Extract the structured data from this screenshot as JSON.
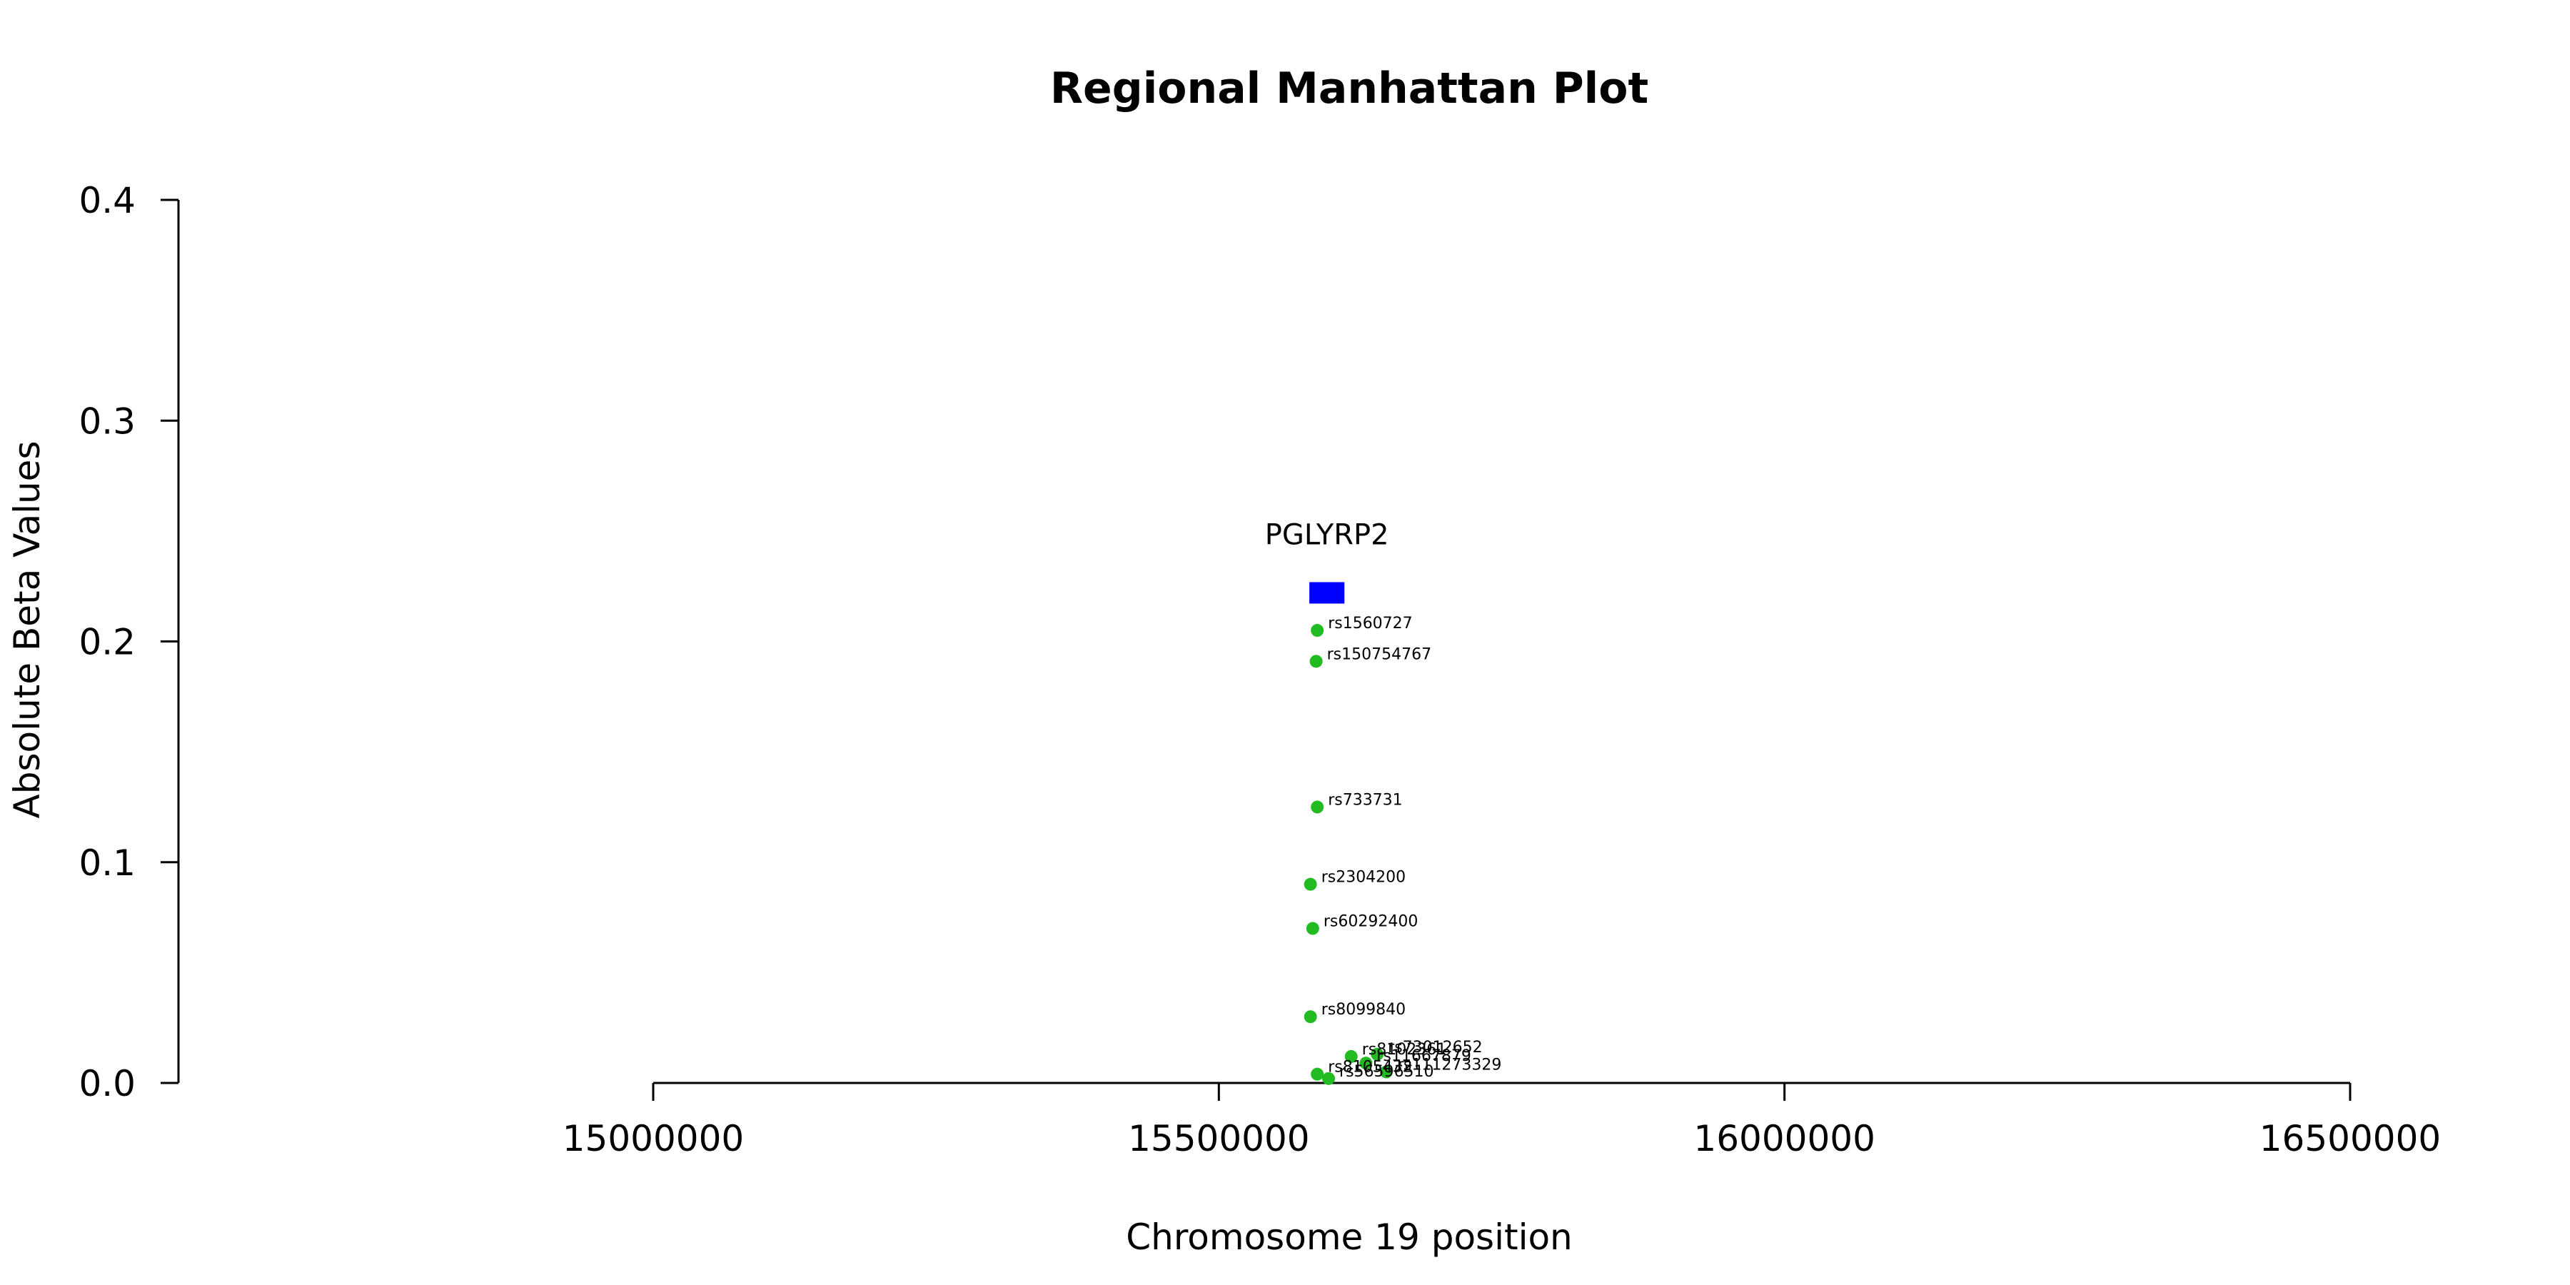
{
  "chart_data": {
    "type": "scatter",
    "title": "Regional Manhattan Plot",
    "xlabel": "Chromosome 19 position",
    "ylabel": "Absolute Beta Values",
    "xlim": [
      15000000,
      16500000
    ],
    "ylim": [
      0,
      0.4
    ],
    "x_ticks": [
      "15000000",
      "15500000",
      "16000000",
      "16500000"
    ],
    "y_ticks": [
      "0.0",
      "0.1",
      "0.2",
      "0.3",
      "0.4"
    ],
    "grid": false,
    "point_color": "#22bb22",
    "gene_color": "#0000ff",
    "gene": {
      "name": "PGLYRP2",
      "start": 15580000,
      "end": 15611000,
      "y": 0.222
    },
    "points": [
      {
        "label": "rs1560727",
        "x": 15587000,
        "y": 0.205
      },
      {
        "label": "rs150754767",
        "x": 15586000,
        "y": 0.191
      },
      {
        "label": "rs733731",
        "x": 15587000,
        "y": 0.125
      },
      {
        "label": "rs2304200",
        "x": 15581000,
        "y": 0.09
      },
      {
        "label": "rs60292400",
        "x": 15583000,
        "y": 0.07
      },
      {
        "label": "rs8099840",
        "x": 15581000,
        "y": 0.03
      },
      {
        "label": "rs8102361",
        "x": 15617000,
        "y": 0.012
      },
      {
        "label": "rs73012652",
        "x": 15640000,
        "y": 0.013
      },
      {
        "label": "rs11667879",
        "x": 15630000,
        "y": 0.009
      },
      {
        "label": "rs111273329",
        "x": 15648000,
        "y": 0.005
      },
      {
        "label": "rs8105432",
        "x": 15587000,
        "y": 0.004
      },
      {
        "label": "rs56596510",
        "x": 15597000,
        "y": 0.002
      }
    ]
  }
}
